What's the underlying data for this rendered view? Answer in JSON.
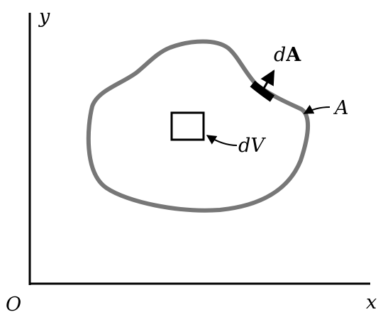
{
  "axes": {
    "y_label": "y",
    "x_label": "x",
    "origin_label": "O"
  },
  "surface": {
    "label": "A",
    "stroke_color": "#777777"
  },
  "area_element": {
    "label_prefix": "d",
    "label_vector": "A",
    "color": "#000000"
  },
  "volume_element": {
    "label": "dV"
  },
  "colors": {
    "axis": "#000000",
    "text": "#000000",
    "background": "#ffffff"
  }
}
